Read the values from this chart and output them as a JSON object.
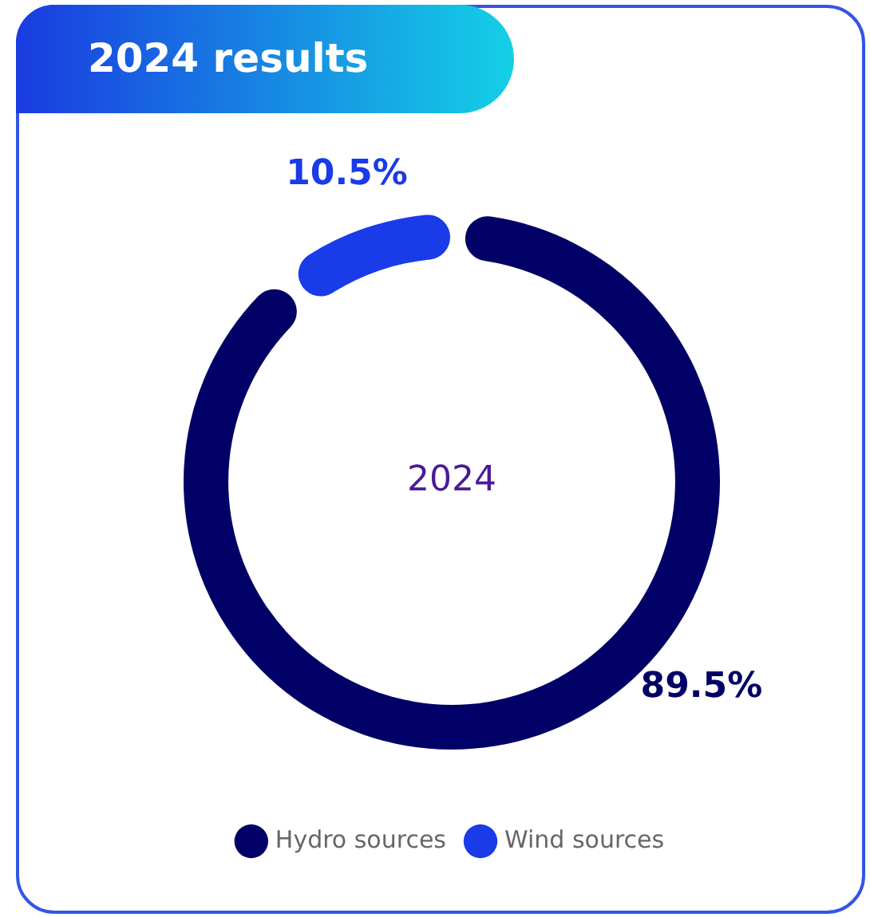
{
  "chart_data": {
    "type": "donut",
    "title": "2024 results",
    "annotations": [
      "2024"
    ],
    "categories": [
      "Hydro sources",
      "Wind sources"
    ],
    "values": [
      89.5,
      10.5
    ],
    "colors": [
      "#000066",
      "#1a3be8"
    ],
    "value_labels": [
      "89.5%",
      "10.5%"
    ],
    "legend": "bottom"
  }
}
